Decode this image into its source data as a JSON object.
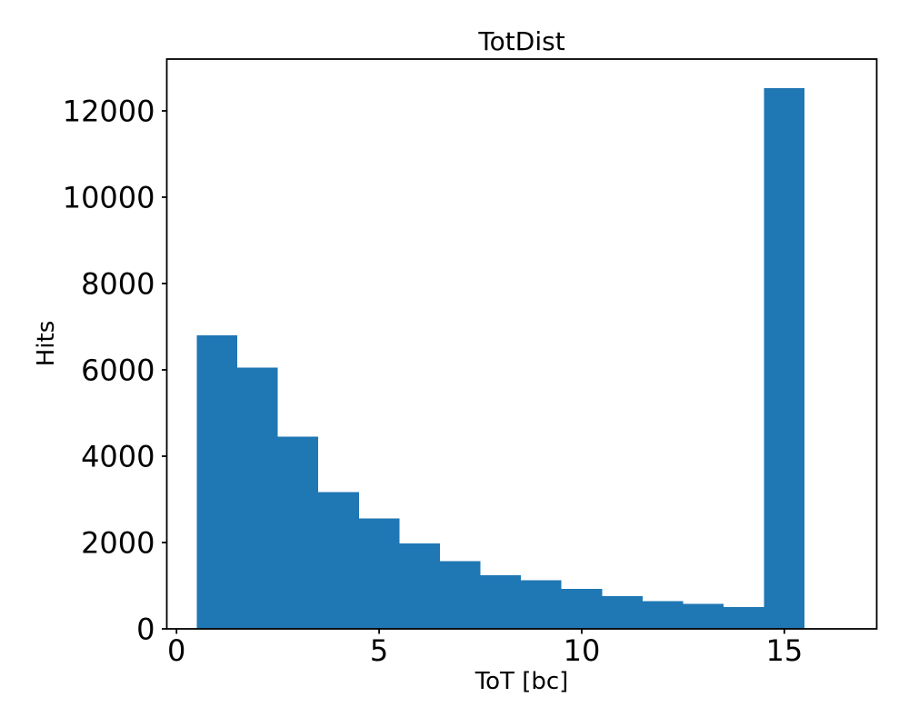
{
  "figure": {
    "background_color": "#ffffff"
  },
  "chart_data": {
    "type": "bar",
    "chart_kind": "histogram",
    "title": "TotDist",
    "xlabel": "ToT [bc]",
    "ylabel": "Hits",
    "bin_width": 1,
    "bin_centers": [
      1,
      2,
      3,
      4,
      5,
      6,
      7,
      8,
      9,
      10,
      11,
      12,
      13,
      14,
      15
    ],
    "values": [
      6800,
      6050,
      4450,
      3170,
      2560,
      1980,
      1570,
      1240,
      1130,
      930,
      760,
      640,
      580,
      510,
      12530
    ],
    "xticks": [
      0,
      5,
      10,
      15
    ],
    "yticks": [
      0,
      2000,
      4000,
      6000,
      8000,
      10000,
      12000
    ],
    "xlim": [
      -0.24,
      17.28
    ],
    "ylim": [
      0,
      13200
    ],
    "bar_color": "#1f77b4",
    "axis_color": "#000000",
    "grid": false,
    "legend_position": "none"
  }
}
